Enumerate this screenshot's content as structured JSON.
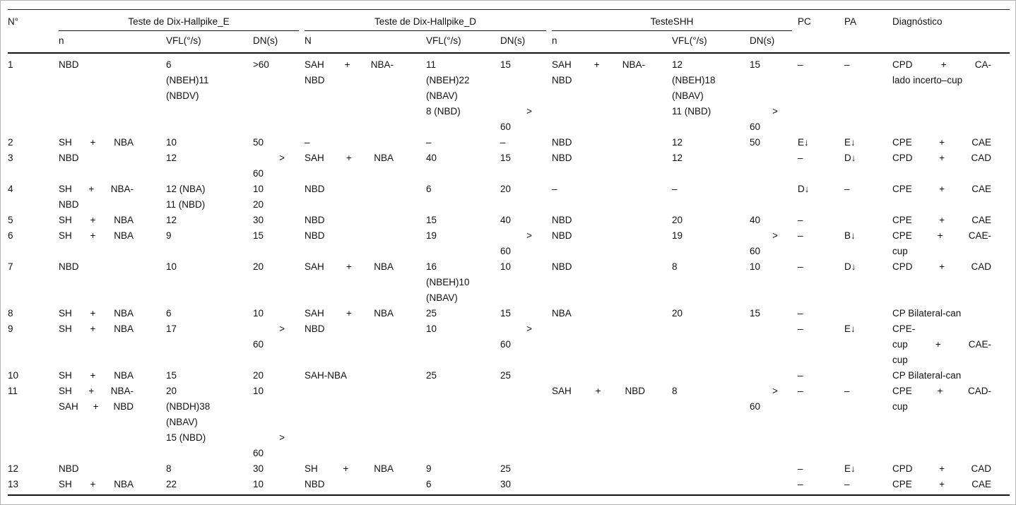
{
  "colors": {
    "background": "#ffffff",
    "text": "#111111",
    "rule": "#111111",
    "frame": "#b5b5b5"
  },
  "table": {
    "corner_label": "N°",
    "groups": [
      {
        "label": "Teste de Dix-Hallpike_E",
        "subs": [
          "n",
          "VFL(°/s)",
          "DN(s)"
        ]
      },
      {
        "label": "Teste de Dix-Hallpike_D",
        "subs": [
          "N",
          "VFL(°/s)",
          "DN(s)"
        ]
      },
      {
        "label": "TesteSHH",
        "subs": [
          "n",
          "VFL(°/s)",
          "DN(s)"
        ]
      }
    ],
    "tail_headers": [
      "PC",
      "PA",
      "Diagnóstico"
    ],
    "rows": [
      {
        "cells": [
          [
            "1"
          ],
          [
            "NBD"
          ],
          [
            "6",
            "(NBEH)11",
            "(NBDV)"
          ],
          [
            ">60"
          ],
          [
            "SAH + NBA-",
            "NBD"
          ],
          [
            "11",
            "(NBEH)22",
            "(NBAV)",
            "8 (NBD)"
          ],
          [
            "15",
            "",
            "",
            ">",
            "60"
          ],
          [
            "SAH + NBA-",
            "NBD"
          ],
          [
            "12",
            "(NBEH)18",
            "(NBAV)",
            "11 (NBD)"
          ],
          [
            "15",
            "",
            "",
            ">",
            "60"
          ],
          [
            "–"
          ],
          [
            "–"
          ],
          [
            "CPD + CA-",
            "lado incerto–cup"
          ]
        ]
      },
      {
        "cells": [
          [
            "2"
          ],
          [
            "SH + NBA"
          ],
          [
            "10"
          ],
          [
            "50"
          ],
          [
            "–"
          ],
          [
            "–"
          ],
          [
            "–"
          ],
          [
            "NBD"
          ],
          [
            "12"
          ],
          [
            "50"
          ],
          [
            "E↓"
          ],
          [
            "E↓"
          ],
          [
            "CPE + CAE"
          ]
        ]
      },
      {
        "cells": [
          [
            "3"
          ],
          [
            "NBD"
          ],
          [
            "12"
          ],
          [
            ">",
            "60"
          ],
          [
            "SAH + NBA"
          ],
          [
            "40"
          ],
          [
            "15"
          ],
          [
            "NBD"
          ],
          [
            "12"
          ],
          [],
          [
            "–"
          ],
          [
            "D↓"
          ],
          [
            "CPD + CAD"
          ]
        ]
      },
      {
        "cells": [
          [
            "4"
          ],
          [
            "SH + NBA-",
            "NBD"
          ],
          [
            "12 (NBA)",
            "11 (NBD)"
          ],
          [
            "10",
            "20"
          ],
          [
            "NBD"
          ],
          [
            "6"
          ],
          [
            "20"
          ],
          [
            "–"
          ],
          [
            "–"
          ],
          [],
          [
            "D↓"
          ],
          [
            "–"
          ],
          [
            "CPE + CAE"
          ]
        ]
      },
      {
        "cells": [
          [
            "5"
          ],
          [
            "SH + NBA"
          ],
          [
            "12"
          ],
          [
            "30"
          ],
          [
            "NBD"
          ],
          [
            "15"
          ],
          [
            "40"
          ],
          [
            "NBD"
          ],
          [
            "20"
          ],
          [
            "40"
          ],
          [
            "–"
          ],
          [],
          [
            "CPE + CAE"
          ]
        ]
      },
      {
        "cells": [
          [
            "6"
          ],
          [
            "SH + NBA"
          ],
          [
            "9"
          ],
          [
            "15"
          ],
          [
            "NBD"
          ],
          [
            "19"
          ],
          [
            ">",
            "60"
          ],
          [
            "NBD"
          ],
          [
            "19"
          ],
          [
            ">",
            "60"
          ],
          [
            "–"
          ],
          [
            "B↓"
          ],
          [
            "CPE + CAE-",
            "cup"
          ]
        ]
      },
      {
        "cells": [
          [
            "7"
          ],
          [
            "NBD"
          ],
          [
            "10"
          ],
          [
            "20"
          ],
          [
            "SAH + NBA"
          ],
          [
            "16",
            "(NBEH)10",
            "(NBAV)"
          ],
          [
            "10"
          ],
          [
            "NBD"
          ],
          [
            "8"
          ],
          [
            "10"
          ],
          [
            "–"
          ],
          [
            "D↓"
          ],
          [
            "CPD + CAD"
          ]
        ]
      },
      {
        "cells": [
          [
            "8"
          ],
          [
            "SH + NBA"
          ],
          [
            "6"
          ],
          [
            "10"
          ],
          [
            "SAH + NBA"
          ],
          [
            "25"
          ],
          [
            "15"
          ],
          [
            "NBA"
          ],
          [
            "20"
          ],
          [
            "15"
          ],
          [
            "–"
          ],
          [],
          [
            "CP Bilateral-can"
          ]
        ]
      },
      {
        "cells": [
          [
            "9"
          ],
          [
            "SH + NBA"
          ],
          [
            "17"
          ],
          [
            ">",
            "60"
          ],
          [
            "NBD"
          ],
          [
            "10"
          ],
          [
            ">",
            "60"
          ],
          [],
          [],
          [],
          [
            "–"
          ],
          [
            "E↓"
          ],
          [
            "CPE-",
            "cup + CAE-",
            "cup"
          ]
        ]
      },
      {
        "cells": [
          [
            "10"
          ],
          [
            "SH + NBA"
          ],
          [
            "15"
          ],
          [
            "20"
          ],
          [
            "SAH-NBA"
          ],
          [
            "25"
          ],
          [
            "25"
          ],
          [],
          [],
          [],
          [
            "–"
          ],
          [],
          [
            "CP Bilateral-can"
          ]
        ]
      },
      {
        "cells": [
          [
            "11"
          ],
          [
            "SH + NBA-",
            "SAH + NBD"
          ],
          [
            "20",
            "(NBDH)38",
            "(NBAV)",
            "15 (NBD)"
          ],
          [
            "10",
            "",
            "",
            ">",
            "60"
          ],
          [],
          [],
          [],
          [
            "SAH + NBD"
          ],
          [
            "8"
          ],
          [
            ">",
            "60"
          ],
          [
            "–"
          ],
          [
            "–"
          ],
          [
            "CPE + CAD-",
            "cup"
          ]
        ]
      },
      {
        "cells": [
          [
            "12"
          ],
          [
            "NBD"
          ],
          [
            "8"
          ],
          [
            "30"
          ],
          [
            "SH + NBA"
          ],
          [
            "9"
          ],
          [
            "25"
          ],
          [],
          [],
          [],
          [
            "–"
          ],
          [
            "E↓"
          ],
          [
            "CPD + CAD"
          ]
        ]
      },
      {
        "cells": [
          [
            "13"
          ],
          [
            "SH + NBA"
          ],
          [
            "22"
          ],
          [
            "10"
          ],
          [
            "NBD"
          ],
          [
            "6"
          ],
          [
            "30"
          ],
          [],
          [],
          [],
          [
            "–"
          ],
          [
            "–"
          ],
          [
            "CPE + CAE"
          ]
        ]
      }
    ]
  }
}
